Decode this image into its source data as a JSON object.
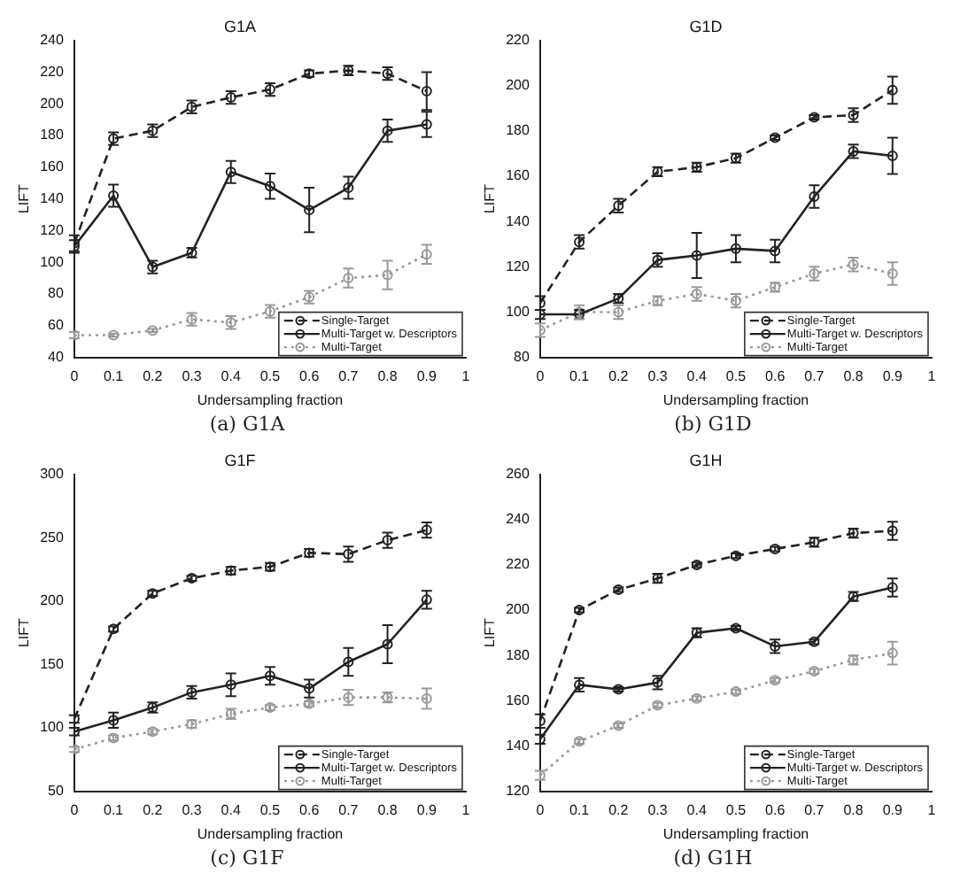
{
  "chart_data": [
    {
      "type": "line",
      "title": "G1A",
      "xlabel": "Undersampling fraction",
      "ylabel": "LIFT",
      "annotations": [
        "(a) G1A"
      ],
      "x": [
        0,
        0.1,
        0.2,
        0.3,
        0.4,
        0.5,
        0.6,
        0.7,
        0.8,
        0.9
      ],
      "xlim": [
        0,
        1
      ],
      "xticks": [
        0,
        0.1,
        0.2,
        0.3,
        0.4,
        0.5,
        0.6,
        0.7,
        0.8,
        0.9,
        1
      ],
      "ylim": [
        40,
        240
      ],
      "yticks": [
        40,
        60,
        80,
        100,
        120,
        140,
        160,
        180,
        200,
        220,
        240
      ],
      "legend": "bottom right",
      "grid": false,
      "series": [
        {
          "name": "Single-Target",
          "color": "#222222",
          "line_style": "dashed",
          "marker": "circle",
          "values": [
            112,
            178,
            183,
            198,
            204,
            209,
            219,
            221,
            219,
            208
          ],
          "errors": [
            5,
            4,
            4,
            4,
            4,
            4,
            2,
            3,
            4,
            12
          ]
        },
        {
          "name": "Multi-Target w. Descriptors",
          "color": "#222222",
          "line_style": "solid",
          "marker": "circle",
          "values": [
            110,
            142,
            97,
            106,
            157,
            148,
            133,
            147,
            183,
            187
          ],
          "errors": [
            4,
            7,
            4,
            3,
            7,
            8,
            14,
            7,
            7,
            8
          ]
        },
        {
          "name": "Multi-Target",
          "color": "#999999",
          "line_style": "dotted",
          "marker": "circle",
          "values": [
            54,
            54,
            57,
            64,
            62,
            69,
            78,
            90,
            92,
            105
          ],
          "errors": [
            2,
            1,
            1,
            4,
            4,
            4,
            4,
            6,
            9,
            6
          ]
        }
      ]
    },
    {
      "type": "line",
      "title": "G1D",
      "xlabel": "Undersampling fraction",
      "ylabel": "LIFT",
      "annotations": [
        "(b) G1D"
      ],
      "x": [
        0,
        0.1,
        0.2,
        0.3,
        0.4,
        0.5,
        0.6,
        0.7,
        0.8,
        0.9
      ],
      "xlim": [
        0,
        1
      ],
      "xticks": [
        0,
        0.1,
        0.2,
        0.3,
        0.4,
        0.5,
        0.6,
        0.7,
        0.8,
        0.9,
        1
      ],
      "ylim": [
        80,
        220
      ],
      "yticks": [
        80,
        100,
        120,
        140,
        160,
        180,
        200,
        220
      ],
      "legend": "bottom right",
      "grid": false,
      "series": [
        {
          "name": "Single-Target",
          "color": "#222222",
          "line_style": "dashed",
          "marker": "circle",
          "values": [
            104,
            131,
            147,
            162,
            164,
            168,
            177,
            186,
            187,
            198
          ],
          "errors": [
            3,
            3,
            3,
            2,
            2,
            2,
            1,
            1,
            3,
            6
          ]
        },
        {
          "name": "Multi-Target w. Descriptors",
          "color": "#222222",
          "line_style": "solid",
          "marker": "circle",
          "values": [
            99,
            99,
            106,
            123,
            125,
            128,
            127,
            151,
            171,
            169
          ],
          "errors": [
            2,
            2,
            2,
            3,
            10,
            6,
            5,
            5,
            3,
            8
          ]
        },
        {
          "name": "Multi-Target",
          "color": "#999999",
          "line_style": "dotted",
          "marker": "circle",
          "values": [
            92,
            100,
            100,
            105,
            108,
            105,
            111,
            117,
            121,
            117
          ],
          "errors": [
            3,
            3,
            3,
            2,
            3,
            3,
            2,
            3,
            3,
            5
          ]
        }
      ]
    },
    {
      "type": "line",
      "title": "G1F",
      "xlabel": "Undersampling fraction",
      "ylabel": "LIFT",
      "annotations": [
        "(c) G1F"
      ],
      "x": [
        0,
        0.1,
        0.2,
        0.3,
        0.4,
        0.5,
        0.6,
        0.7,
        0.8,
        0.9
      ],
      "xlim": [
        0,
        1
      ],
      "xticks": [
        0,
        0.1,
        0.2,
        0.3,
        0.4,
        0.5,
        0.6,
        0.7,
        0.8,
        0.9,
        1
      ],
      "ylim": [
        50,
        300
      ],
      "yticks": [
        50,
        100,
        150,
        200,
        250,
        300
      ],
      "legend": "bottom right",
      "grid": false,
      "series": [
        {
          "name": "Single-Target",
          "color": "#222222",
          "line_style": "dashed",
          "marker": "circle",
          "values": [
            107,
            178,
            206,
            218,
            224,
            227,
            238,
            237,
            248,
            256
          ],
          "errors": [
            3,
            2,
            2,
            2,
            3,
            3,
            3,
            6,
            6,
            6
          ]
        },
        {
          "name": "Multi-Target w. Descriptors",
          "color": "#222222",
          "line_style": "solid",
          "marker": "circle",
          "values": [
            97,
            106,
            116,
            128,
            134,
            141,
            131,
            152,
            166,
            201
          ],
          "errors": [
            3,
            6,
            4,
            5,
            9,
            7,
            7,
            11,
            15,
            7
          ]
        },
        {
          "name": "Multi-Target",
          "color": "#999999",
          "line_style": "dotted",
          "marker": "circle",
          "values": [
            83,
            92,
            97,
            103,
            111,
            116,
            119,
            124,
            124,
            123
          ],
          "errors": [
            2,
            2,
            2,
            3,
            4,
            2,
            2,
            6,
            4,
            8
          ]
        }
      ]
    },
    {
      "type": "line",
      "title": "G1H",
      "xlabel": "Undersampling fraction",
      "ylabel": "LIFT",
      "annotations": [
        "(d) G1H"
      ],
      "x": [
        0,
        0.1,
        0.2,
        0.3,
        0.4,
        0.5,
        0.6,
        0.7,
        0.8,
        0.9
      ],
      "xlim": [
        0,
        1
      ],
      "xticks": [
        0,
        0.1,
        0.2,
        0.3,
        0.4,
        0.5,
        0.6,
        0.7,
        0.8,
        0.9,
        1
      ],
      "ylim": [
        120,
        260
      ],
      "yticks": [
        120,
        140,
        160,
        180,
        200,
        220,
        240,
        260
      ],
      "legend": "bottom right",
      "grid": false,
      "series": [
        {
          "name": "Single-Target",
          "color": "#222222",
          "line_style": "dashed",
          "marker": "circle",
          "values": [
            151,
            200,
            209,
            214,
            220,
            224,
            227,
            230,
            234,
            235
          ],
          "errors": [
            3,
            1,
            1,
            2,
            1,
            1,
            1,
            2,
            2,
            4
          ]
        },
        {
          "name": "Multi-Target w. Descriptors",
          "color": "#222222",
          "line_style": "solid",
          "marker": "circle",
          "values": [
            143,
            167,
            165,
            168,
            190,
            192,
            184,
            186,
            206,
            210
          ],
          "errors": [
            2,
            3,
            1,
            3,
            2,
            1,
            3,
            1,
            2,
            4
          ]
        },
        {
          "name": "Multi-Target",
          "color": "#999999",
          "line_style": "dotted",
          "marker": "circle",
          "values": [
            127,
            142,
            149,
            158,
            161,
            164,
            169,
            173,
            178,
            181
          ],
          "errors": [
            2,
            1,
            1,
            1,
            1,
            1,
            1,
            1,
            2,
            5
          ]
        }
      ]
    }
  ]
}
